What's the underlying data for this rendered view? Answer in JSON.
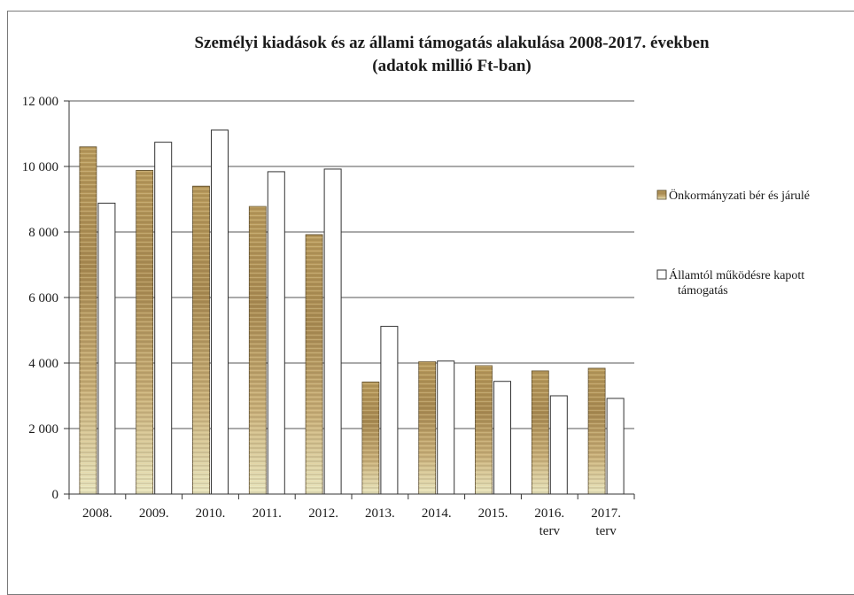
{
  "chart_data": {
    "type": "bar",
    "title": "Személyi kiadások és az állami támogatás alakulása 2008-2017. években",
    "subtitle": "(adatok millió Ft-ban)",
    "categories": [
      "2008.",
      "2009.",
      "2010.",
      "2011.",
      "2012.",
      "2013.",
      "2014.",
      "2015.",
      "2016.",
      "2017."
    ],
    "category_sublabels": [
      "",
      "",
      "",
      "",
      "",
      "",
      "",
      "",
      "terv",
      "terv"
    ],
    "series": [
      {
        "name": "Önkormányzati bér és járulé",
        "color": "#b89a5c",
        "values": [
          10600,
          9880,
          9400,
          8780,
          7920,
          3420,
          4040,
          3920,
          3760,
          3840
        ]
      },
      {
        "name": "Államtól működésre kapott támogatás",
        "legend_lines": [
          "Államtól működésre kapott",
          "támogatás"
        ],
        "color": "#ffffff",
        "values": [
          8880,
          10740,
          11110,
          9840,
          9920,
          5120,
          4060,
          3440,
          3000,
          2920
        ]
      }
    ],
    "ylim": [
      0,
      12000
    ],
    "yticks": [
      0,
      2000,
      4000,
      6000,
      8000,
      10000,
      12000
    ],
    "ytick_labels": [
      "0",
      "2 000",
      "4 000",
      "6 000",
      "8 000",
      "10 000",
      "12 000"
    ],
    "grid": true,
    "legend_position": "right"
  }
}
